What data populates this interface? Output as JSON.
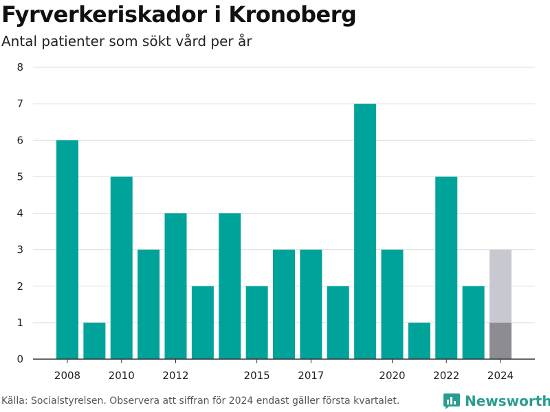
{
  "header": {
    "title": "Fyrverkeriskador i Kronoberg",
    "subtitle": "Antal patienter som sökt vård per år"
  },
  "footer": {
    "source": "Källa: Socialstyrelsen. Observera att siffran för 2024 endast gäller första kvartalet.",
    "brand": "Newsworthy",
    "brand_icon": "bar-chart-logo-icon"
  },
  "colors": {
    "bar": "#00a39a",
    "partial_light": "#c8c8d0",
    "partial_dark": "#8c8c92",
    "grid": "#dddddd",
    "axis": "#333333",
    "brand": "#2a9d8f"
  },
  "chart_data": {
    "type": "bar",
    "title": "Fyrverkeriskador i Kronoberg",
    "subtitle": "Antal patienter som sökt vård per år",
    "categories": [
      2008,
      2009,
      2010,
      2011,
      2012,
      2013,
      2014,
      2015,
      2016,
      2017,
      2018,
      2019,
      2020,
      2021,
      2022,
      2023,
      2024
    ],
    "values": [
      6,
      1,
      5,
      3,
      4,
      2,
      4,
      2,
      3,
      3,
      2,
      7,
      3,
      1,
      5,
      2,
      1
    ],
    "highlight": {
      "category": 2024,
      "value": 1,
      "reference_value": 3
    },
    "xticks": [
      2008,
      2010,
      2012,
      2015,
      2017,
      2020,
      2022,
      2024
    ],
    "yticks": [
      0,
      1,
      2,
      3,
      4,
      5,
      6,
      7,
      8
    ],
    "ylim": [
      0,
      8
    ],
    "xlabel": "",
    "ylabel": "",
    "grid": true,
    "legend": "none"
  }
}
